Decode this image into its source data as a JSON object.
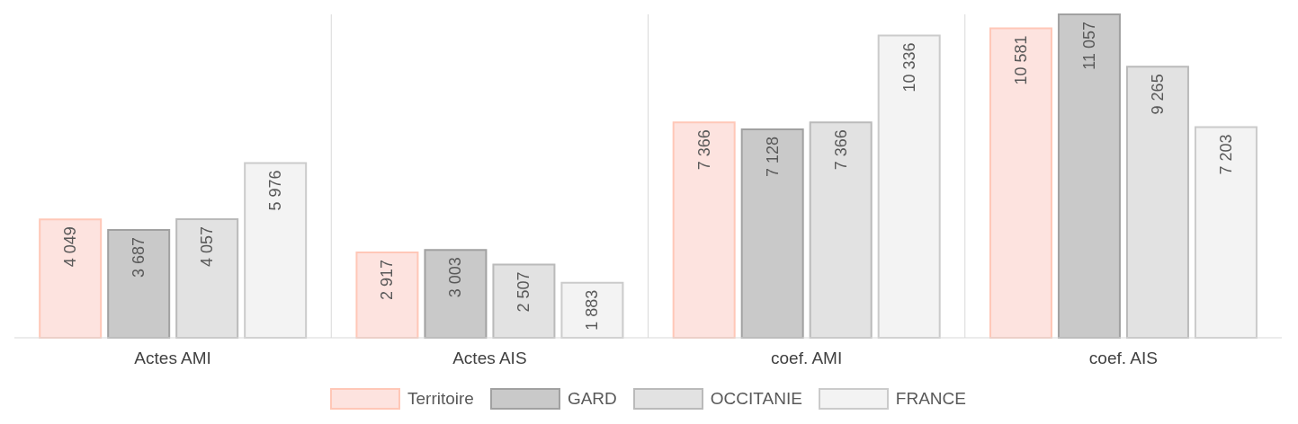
{
  "chart_data": {
    "type": "bar",
    "categories": [
      "Actes AMI",
      "Actes AIS",
      "coef. AMI",
      "coef. AIS"
    ],
    "series": [
      {
        "name": "Territoire",
        "color": "#fde3df",
        "values": [
          4049,
          2917,
          7366,
          10581
        ],
        "value_labels": [
          "4 049",
          "2 917",
          "7 366",
          "10 581"
        ]
      },
      {
        "name": "GARD",
        "color": "#c9c9c9",
        "values": [
          3687,
          3003,
          7128,
          11057
        ],
        "value_labels": [
          "3 687",
          "3 003",
          "7 128",
          "11 057"
        ]
      },
      {
        "name": "OCCITANIE",
        "color": "#e2e2e2",
        "values": [
          4057,
          2507,
          7366,
          9265
        ],
        "value_labels": [
          "4 057",
          "2 507",
          "7 366",
          "9 265"
        ]
      },
      {
        "name": "FRANCE",
        "color": "#f3f3f3",
        "values": [
          5976,
          1883,
          10336,
          7203
        ],
        "value_labels": [
          "5 976",
          "1 883",
          "10 336",
          "7 203"
        ]
      }
    ],
    "grid": "x",
    "legend": "bottom"
  }
}
